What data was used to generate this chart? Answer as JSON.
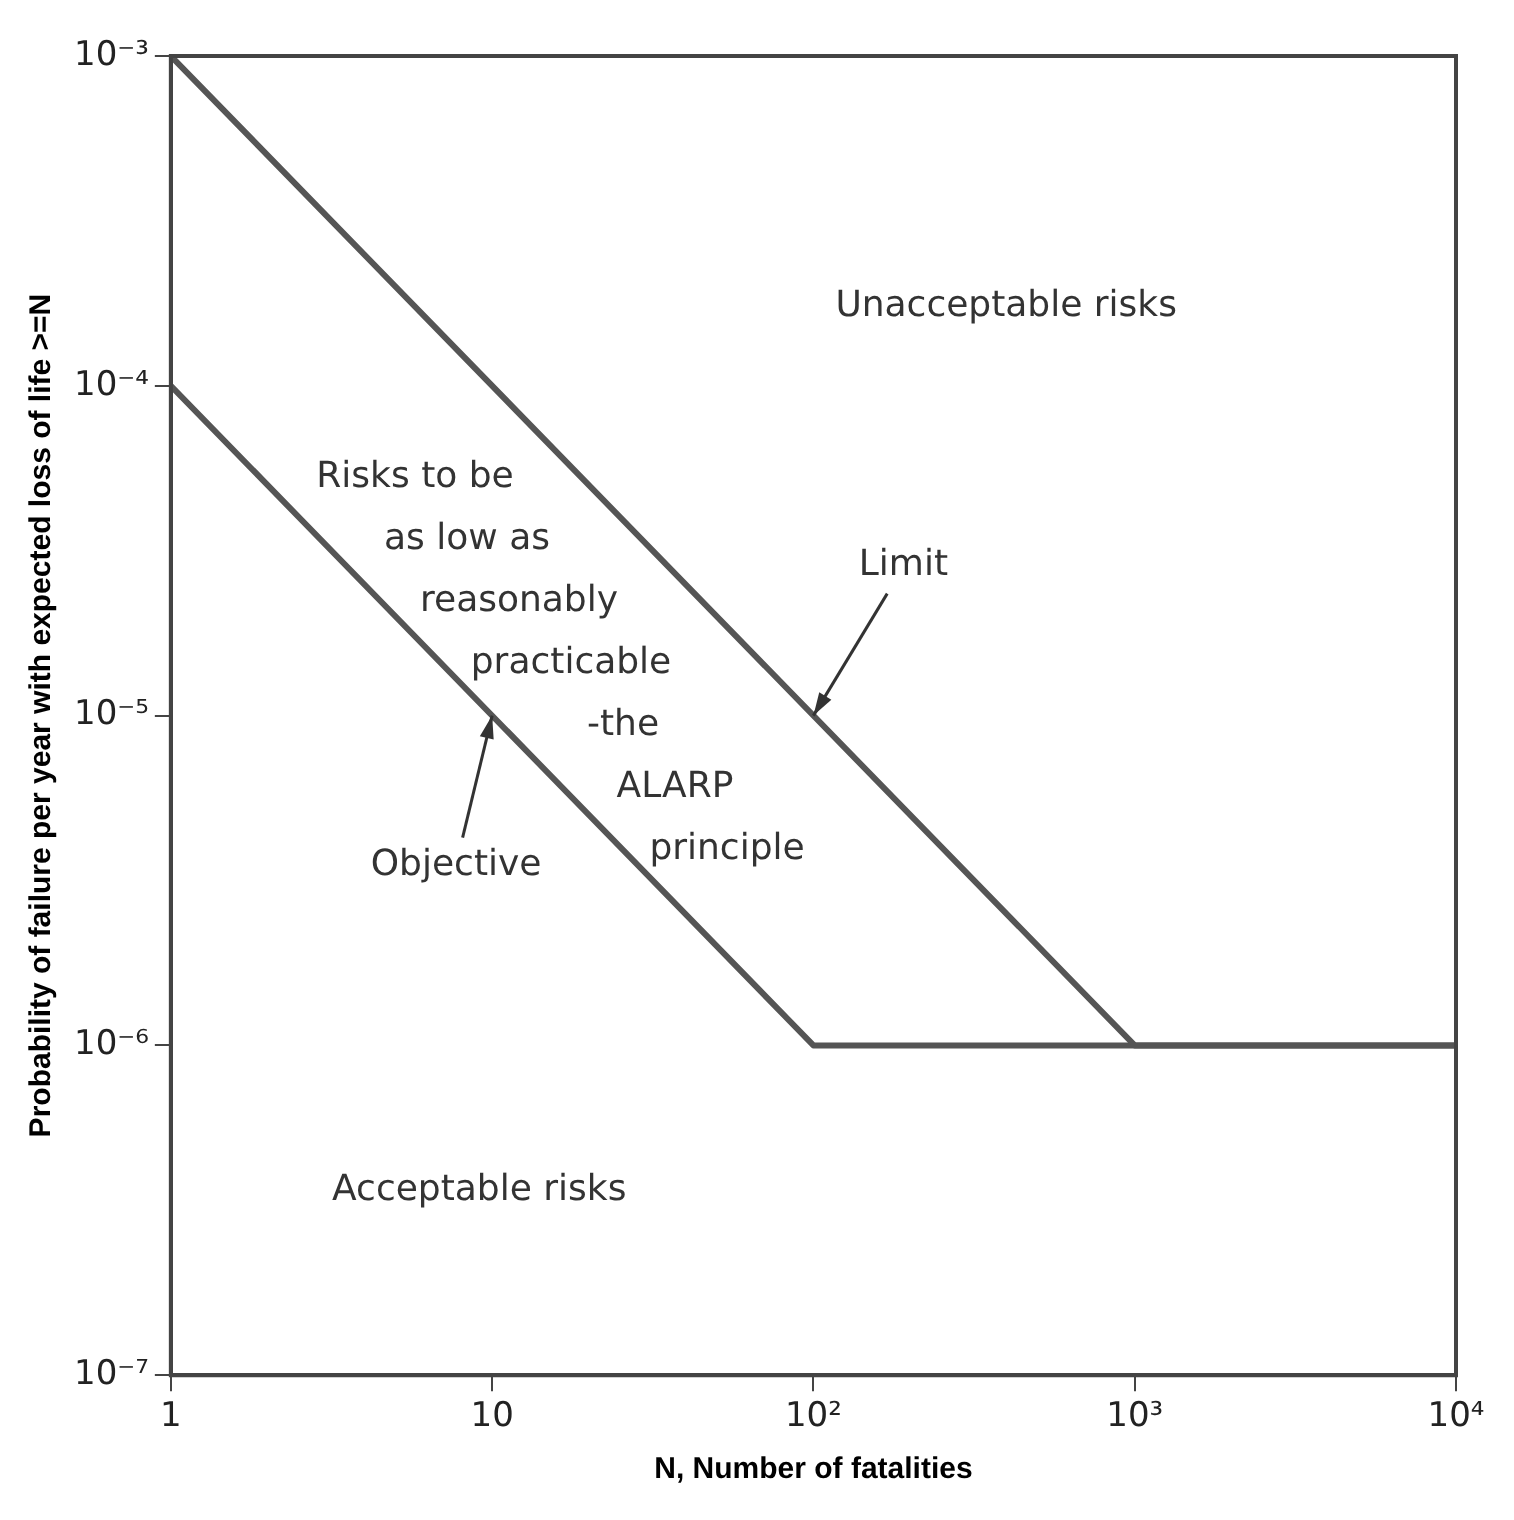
{
  "chart_data": {
    "type": "line",
    "xlabel": "N, Number of fatalities",
    "ylabel": "Probability of failure per year with expected loss of life >=N",
    "log": "xy",
    "grid": false,
    "legend": false,
    "marker": "none",
    "line_style": "solid",
    "xlim": [
      1,
      10000
    ],
    "ylim": [
      1e-07,
      0.001
    ],
    "xticks": [
      1,
      10,
      {
        "value": 100,
        "label": "10²"
      },
      {
        "value": 1000,
        "label": "10³"
      },
      {
        "value": 10000,
        "label": "10⁴"
      }
    ],
    "yticks": [
      {
        "value": 1e-07,
        "label": "10⁻⁷"
      },
      {
        "value": 1e-06,
        "label": "10⁻⁶"
      },
      {
        "value": 1e-05,
        "label": "10⁻⁵"
      },
      {
        "value": 0.0001,
        "label": "10⁻⁴"
      },
      {
        "value": 0.001,
        "label": "10⁻³"
      }
    ],
    "series": [
      {
        "color": "#555555",
        "x": [
          1,
          1000,
          10000
        ],
        "values": [
          0.001,
          1e-06,
          1e-06
        ]
      },
      {
        "color": "#555555",
        "x": [
          1,
          100,
          10000
        ],
        "values": [
          0.0001,
          1e-06,
          1e-06
        ]
      }
    ],
    "annotations": [
      "Unacceptable risks",
      "Risks to be\nas low as\nreasonably\npracticable\n-the\nALARP\nprinciple",
      "Acceptable risks",
      {
        "text": "Limit",
        "x": 100,
        "y": 1e-05
      },
      {
        "text": "Objective",
        "x": 10,
        "y": 1e-05
      }
    ]
  }
}
